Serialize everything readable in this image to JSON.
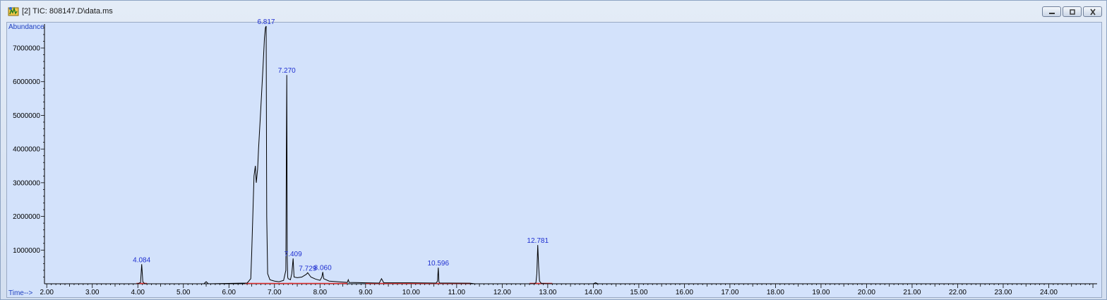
{
  "window": {
    "title": "[2] TIC: 808147.D\\data.ms",
    "controls": [
      "minimize",
      "restore",
      "close"
    ]
  },
  "chart_data": {
    "type": "line",
    "ylabel": "Abundance",
    "xlabel": "Time-->",
    "xlim": [
      1.95,
      25.0
    ],
    "ylim": [
      0,
      7650000
    ],
    "x_ticks": [
      "2.00",
      "3.00",
      "4.00",
      "5.00",
      "6.00",
      "7.00",
      "8.00",
      "9.00",
      "10.00",
      "11.00",
      "12.00",
      "13.00",
      "14.00",
      "15.00",
      "16.00",
      "17.00",
      "18.00",
      "19.00",
      "20.00",
      "21.00",
      "22.00",
      "23.00",
      "24.00"
    ],
    "y_ticks": [
      "1000000",
      "2000000",
      "3000000",
      "4000000",
      "5000000",
      "6000000",
      "7000000"
    ],
    "peak_labels": [
      {
        "time": "4.084",
        "abundance": 580000
      },
      {
        "time": "6.817",
        "abundance": 7650000
      },
      {
        "time": "7.270",
        "abundance": 6200000
      },
      {
        "time": "7.409",
        "abundance": 750000
      },
      {
        "time": "7.729",
        "abundance": 330000
      },
      {
        "time": "8.060",
        "abundance": 350000
      },
      {
        "time": "10.596",
        "abundance": 480000
      },
      {
        "time": "12.781",
        "abundance": 1150000
      }
    ],
    "series": [
      {
        "color": "#000000",
        "x": [
          1.95,
          4.0,
          4.06,
          4.084,
          4.11,
          4.15,
          5.45,
          5.5,
          5.55,
          6.4,
          6.48,
          6.5,
          6.55,
          6.58,
          6.6,
          6.63,
          6.65,
          6.7,
          6.75,
          6.78,
          6.8,
          6.817,
          6.83,
          6.85,
          6.9,
          7.0,
          7.1,
          7.2,
          7.25,
          7.26,
          7.27,
          7.275,
          7.28,
          7.29,
          7.3,
          7.35,
          7.38,
          7.409,
          7.43,
          7.5,
          7.6,
          7.7,
          7.729,
          7.8,
          7.9,
          8.0,
          8.04,
          8.06,
          8.08,
          8.2,
          8.6,
          8.62,
          8.64,
          9.0,
          9.3,
          9.35,
          9.4,
          10.0,
          10.55,
          10.58,
          10.596,
          10.61,
          10.63,
          10.8,
          11.3,
          11.4,
          12.7,
          12.74,
          12.76,
          12.781,
          12.8,
          12.82,
          12.86,
          13.0,
          14.0,
          14.05,
          14.1,
          25.0
        ],
        "y": [
          0,
          0,
          40000,
          580000,
          60000,
          0,
          0,
          60000,
          0,
          20000,
          150000,
          900000,
          3200000,
          3500000,
          3000000,
          3400000,
          4000000,
          5200000,
          6500000,
          7300000,
          7600000,
          7650000,
          2000000,
          300000,
          120000,
          80000,
          60000,
          100000,
          400000,
          3800000,
          6200000,
          4000000,
          800000,
          200000,
          150000,
          120000,
          300000,
          750000,
          200000,
          180000,
          200000,
          280000,
          330000,
          200000,
          140000,
          100000,
          200000,
          350000,
          150000,
          80000,
          40000,
          120000,
          40000,
          30000,
          20000,
          150000,
          30000,
          30000,
          20000,
          80000,
          480000,
          60000,
          20000,
          20000,
          15000,
          0,
          0,
          30000,
          300000,
          1150000,
          500000,
          80000,
          10000,
          0,
          0,
          30000,
          0,
          0
        ]
      }
    ],
    "baselines": [
      {
        "color": "#e03030",
        "x": [
          3.97,
          4.2
        ]
      },
      {
        "color": "#e03030",
        "x": [
          6.35,
          7.4
        ]
      },
      {
        "color": "#e03030",
        "x": [
          7.32,
          8.6
        ]
      },
      {
        "color": "#e03030",
        "x": [
          9.0,
          11.3
        ]
      },
      {
        "color": "#e03030",
        "x": [
          12.6,
          13.1
        ]
      }
    ]
  }
}
